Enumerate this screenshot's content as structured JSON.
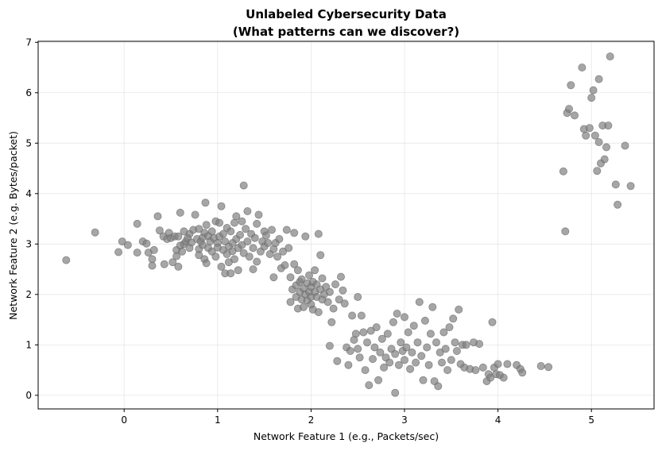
{
  "chart_data": {
    "type": "scatter",
    "title_line1": "Unlabeled Cybersecurity Data",
    "title_line2": "(What patterns can we discover?)",
    "xlabel": "Network Feature 1 (e.g., Packets/sec)",
    "ylabel": "Network Feature 2 (e.g. Bytes/packet)",
    "xlim": [
      -0.92,
      5.67
    ],
    "ylim": [
      -0.27,
      7.02
    ],
    "xticks": [
      0,
      1,
      2,
      3,
      4,
      5
    ],
    "yticks": [
      0,
      1,
      2,
      3,
      4,
      5,
      6,
      7
    ],
    "grid": true,
    "point_color": "#808080",
    "points": [
      [
        -0.62,
        2.68
      ],
      [
        -0.31,
        3.23
      ],
      [
        -0.06,
        2.84
      ],
      [
        -0.02,
        3.05
      ],
      [
        0.04,
        2.98
      ],
      [
        0.14,
        3.4
      ],
      [
        0.14,
        2.83
      ],
      [
        0.2,
        3.05
      ],
      [
        0.24,
        3.01
      ],
      [
        0.26,
        2.83
      ],
      [
        0.3,
        2.7
      ],
      [
        0.3,
        2.57
      ],
      [
        0.32,
        2.88
      ],
      [
        0.36,
        3.55
      ],
      [
        0.38,
        3.27
      ],
      [
        0.42,
        3.15
      ],
      [
        0.43,
        2.6
      ],
      [
        0.46,
        3.1
      ],
      [
        0.48,
        3.22
      ],
      [
        0.5,
        3.12
      ],
      [
        0.52,
        2.64
      ],
      [
        0.54,
        3.15
      ],
      [
        0.56,
        2.88
      ],
      [
        0.56,
        2.76
      ],
      [
        0.58,
        3.15
      ],
      [
        0.58,
        2.55
      ],
      [
        0.6,
        3.62
      ],
      [
        0.6,
        2.97
      ],
      [
        0.62,
        2.85
      ],
      [
        0.64,
        3.0
      ],
      [
        0.64,
        3.25
      ],
      [
        0.66,
        3.05
      ],
      [
        0.68,
        3.12
      ],
      [
        0.7,
        3.2
      ],
      [
        0.7,
        2.92
      ],
      [
        0.72,
        3.03
      ],
      [
        0.74,
        3.28
      ],
      [
        0.76,
        3.58
      ],
      [
        0.78,
        3.1
      ],
      [
        0.8,
        2.9
      ],
      [
        0.8,
        2.78
      ],
      [
        0.8,
        3.3
      ],
      [
        0.82,
        3.05
      ],
      [
        0.84,
        2.98
      ],
      [
        0.84,
        3.13
      ],
      [
        0.86,
        2.7
      ],
      [
        0.86,
        3.22
      ],
      [
        0.87,
        3.82
      ],
      [
        0.88,
        2.62
      ],
      [
        0.88,
        3.38
      ],
      [
        0.9,
        2.92
      ],
      [
        0.9,
        3.16
      ],
      [
        0.92,
        3.05
      ],
      [
        0.94,
        2.85
      ],
      [
        0.94,
        3.25
      ],
      [
        0.96,
        3.12
      ],
      [
        0.98,
        3.45
      ],
      [
        0.98,
        2.75
      ],
      [
        1.0,
        3.02
      ],
      [
        1.0,
        2.93
      ],
      [
        1.02,
        3.15
      ],
      [
        1.02,
        3.42
      ],
      [
        1.04,
        3.75
      ],
      [
        1.04,
        2.55
      ],
      [
        1.06,
        2.88
      ],
      [
        1.06,
        3.2
      ],
      [
        1.08,
        3.05
      ],
      [
        1.08,
        2.42
      ],
      [
        1.1,
        2.8
      ],
      [
        1.1,
        3.32
      ],
      [
        1.12,
        2.95
      ],
      [
        1.12,
        2.64
      ],
      [
        1.14,
        3.25
      ],
      [
        1.14,
        2.42
      ],
      [
        1.16,
        3.02
      ],
      [
        1.16,
        2.86
      ],
      [
        1.18,
        3.42
      ],
      [
        1.18,
        2.7
      ],
      [
        1.2,
        3.1
      ],
      [
        1.2,
        3.55
      ],
      [
        1.22,
        2.92
      ],
      [
        1.22,
        2.48
      ],
      [
        1.24,
        3.18
      ],
      [
        1.26,
        2.98
      ],
      [
        1.26,
        3.45
      ],
      [
        1.28,
        2.82
      ],
      [
        1.28,
        4.16
      ],
      [
        1.3,
        3.3
      ],
      [
        1.32,
        3.05
      ],
      [
        1.32,
        3.65
      ],
      [
        1.34,
        2.75
      ],
      [
        1.36,
        3.2
      ],
      [
        1.38,
        2.92
      ],
      [
        1.38,
        2.5
      ],
      [
        1.4,
        3.12
      ],
      [
        1.42,
        3.4
      ],
      [
        1.42,
        2.65
      ],
      [
        1.44,
        3.58
      ],
      [
        1.46,
        2.85
      ],
      [
        1.48,
        3.05
      ],
      [
        1.5,
        3.25
      ],
      [
        1.5,
        2.95
      ],
      [
        1.52,
        3.17
      ],
      [
        1.54,
        3.02
      ],
      [
        1.56,
        2.8
      ],
      [
        1.58,
        3.28
      ],
      [
        1.6,
        2.9
      ],
      [
        1.6,
        2.34
      ],
      [
        1.62,
        3.02
      ],
      [
        1.64,
        2.75
      ],
      [
        1.66,
        3.1
      ],
      [
        1.68,
        2.52
      ],
      [
        1.7,
        2.85
      ],
      [
        1.72,
        2.58
      ],
      [
        1.74,
        3.28
      ],
      [
        1.76,
        2.92
      ],
      [
        1.78,
        2.34
      ],
      [
        1.78,
        1.85
      ],
      [
        1.8,
        2.1
      ],
      [
        1.82,
        3.22
      ],
      [
        1.82,
        2.6
      ],
      [
        1.84,
        2.18
      ],
      [
        1.84,
        1.95
      ],
      [
        1.86,
        2.48
      ],
      [
        1.86,
        1.72
      ],
      [
        1.88,
        2.25
      ],
      [
        1.88,
        2.05
      ],
      [
        1.9,
        1.9
      ],
      [
        1.9,
        2.3
      ],
      [
        1.92,
        2.12
      ],
      [
        1.92,
        1.75
      ],
      [
        1.94,
        3.15
      ],
      [
        1.94,
        2.0
      ],
      [
        1.96,
        2.22
      ],
      [
        1.96,
        1.88
      ],
      [
        1.98,
        2.05
      ],
      [
        1.98,
        2.38
      ],
      [
        2.0,
        1.95
      ],
      [
        2.0,
        2.15
      ],
      [
        2.0,
        1.8
      ],
      [
        2.02,
        2.25
      ],
      [
        2.02,
        1.7
      ],
      [
        2.04,
        2.05
      ],
      [
        2.04,
        2.48
      ],
      [
        2.06,
        1.95
      ],
      [
        2.06,
        2.2
      ],
      [
        2.08,
        3.2
      ],
      [
        2.08,
        1.65
      ],
      [
        2.1,
        2.1
      ],
      [
        2.1,
        2.78
      ],
      [
        2.12,
        1.9
      ],
      [
        2.12,
        2.32
      ],
      [
        2.14,
        2.0
      ],
      [
        2.16,
        2.15
      ],
      [
        2.18,
        1.85
      ],
      [
        2.2,
        2.05
      ],
      [
        2.2,
        0.98
      ],
      [
        2.22,
        1.45
      ],
      [
        2.24,
        1.72
      ],
      [
        2.26,
        2.2
      ],
      [
        2.28,
        0.68
      ],
      [
        2.3,
        1.9
      ],
      [
        2.32,
        2.35
      ],
      [
        2.34,
        2.08
      ],
      [
        2.36,
        1.82
      ],
      [
        2.38,
        0.95
      ],
      [
        2.4,
        0.6
      ],
      [
        2.42,
        0.88
      ],
      [
        2.44,
        1.58
      ],
      [
        2.46,
        1.1
      ],
      [
        2.48,
        1.22
      ],
      [
        2.5,
        0.92
      ],
      [
        2.5,
        1.95
      ],
      [
        2.52,
        0.75
      ],
      [
        2.54,
        1.58
      ],
      [
        2.56,
        1.25
      ],
      [
        2.58,
        0.5
      ],
      [
        2.6,
        1.05
      ],
      [
        2.62,
        0.2
      ],
      [
        2.64,
        1.28
      ],
      [
        2.66,
        0.72
      ],
      [
        2.68,
        0.95
      ],
      [
        2.7,
        1.35
      ],
      [
        2.72,
        0.3
      ],
      [
        2.74,
        0.85
      ],
      [
        2.76,
        1.12
      ],
      [
        2.78,
        0.55
      ],
      [
        2.8,
        0.75
      ],
      [
        2.82,
        1.22
      ],
      [
        2.84,
        0.65
      ],
      [
        2.86,
        0.92
      ],
      [
        2.88,
        1.45
      ],
      [
        2.9,
        0.05
      ],
      [
        2.9,
        0.82
      ],
      [
        2.92,
        1.62
      ],
      [
        2.94,
        0.6
      ],
      [
        2.96,
        1.05
      ],
      [
        2.98,
        0.88
      ],
      [
        3.0,
        1.55
      ],
      [
        3.0,
        0.7
      ],
      [
        3.02,
        0.95
      ],
      [
        3.04,
        1.25
      ],
      [
        3.06,
        0.52
      ],
      [
        3.08,
        0.85
      ],
      [
        3.1,
        1.38
      ],
      [
        3.12,
        0.65
      ],
      [
        3.14,
        1.05
      ],
      [
        3.16,
        1.85
      ],
      [
        3.18,
        0.78
      ],
      [
        3.2,
        0.3
      ],
      [
        3.22,
        1.48
      ],
      [
        3.24,
        0.95
      ],
      [
        3.26,
        0.6
      ],
      [
        3.28,
        1.22
      ],
      [
        3.3,
        1.75
      ],
      [
        3.32,
        0.28
      ],
      [
        3.34,
        1.05
      ],
      [
        3.36,
        0.18
      ],
      [
        3.38,
        0.85
      ],
      [
        3.4,
        0.65
      ],
      [
        3.42,
        1.25
      ],
      [
        3.44,
        0.92
      ],
      [
        3.46,
        0.5
      ],
      [
        3.48,
        1.35
      ],
      [
        3.5,
        0.7
      ],
      [
        3.52,
        1.52
      ],
      [
        3.54,
        1.05
      ],
      [
        3.56,
        0.88
      ],
      [
        3.58,
        1.7
      ],
      [
        3.6,
        0.62
      ],
      [
        3.62,
        1.0
      ],
      [
        3.64,
        0.55
      ],
      [
        3.66,
        1.0
      ],
      [
        3.7,
        0.52
      ],
      [
        3.74,
        1.05
      ],
      [
        3.76,
        0.5
      ],
      [
        3.8,
        1.02
      ],
      [
        3.84,
        0.55
      ],
      [
        3.88,
        0.28
      ],
      [
        3.9,
        0.42
      ],
      [
        3.92,
        0.35
      ],
      [
        3.94,
        1.45
      ],
      [
        3.96,
        0.55
      ],
      [
        3.98,
        0.42
      ],
      [
        4.0,
        0.62
      ],
      [
        4.02,
        0.4
      ],
      [
        4.06,
        0.35
      ],
      [
        4.1,
        0.62
      ],
      [
        4.2,
        0.6
      ],
      [
        4.24,
        0.52
      ],
      [
        4.26,
        0.45
      ],
      [
        4.46,
        0.58
      ],
      [
        4.54,
        0.56
      ],
      [
        4.7,
        4.44
      ],
      [
        4.72,
        3.25
      ],
      [
        4.74,
        5.6
      ],
      [
        4.76,
        5.68
      ],
      [
        4.78,
        6.15
      ],
      [
        4.82,
        5.55
      ],
      [
        4.9,
        6.5
      ],
      [
        4.92,
        5.28
      ],
      [
        4.94,
        5.15
      ],
      [
        4.98,
        5.3
      ],
      [
        5.0,
        5.9
      ],
      [
        5.02,
        6.05
      ],
      [
        5.04,
        5.15
      ],
      [
        5.06,
        4.45
      ],
      [
        5.08,
        6.27
      ],
      [
        5.08,
        5.02
      ],
      [
        5.1,
        4.6
      ],
      [
        5.12,
        5.35
      ],
      [
        5.14,
        4.68
      ],
      [
        5.16,
        4.92
      ],
      [
        5.18,
        5.35
      ],
      [
        5.2,
        6.72
      ],
      [
        5.26,
        4.18
      ],
      [
        5.28,
        3.78
      ],
      [
        5.36,
        4.95
      ],
      [
        5.42,
        4.15
      ]
    ]
  }
}
